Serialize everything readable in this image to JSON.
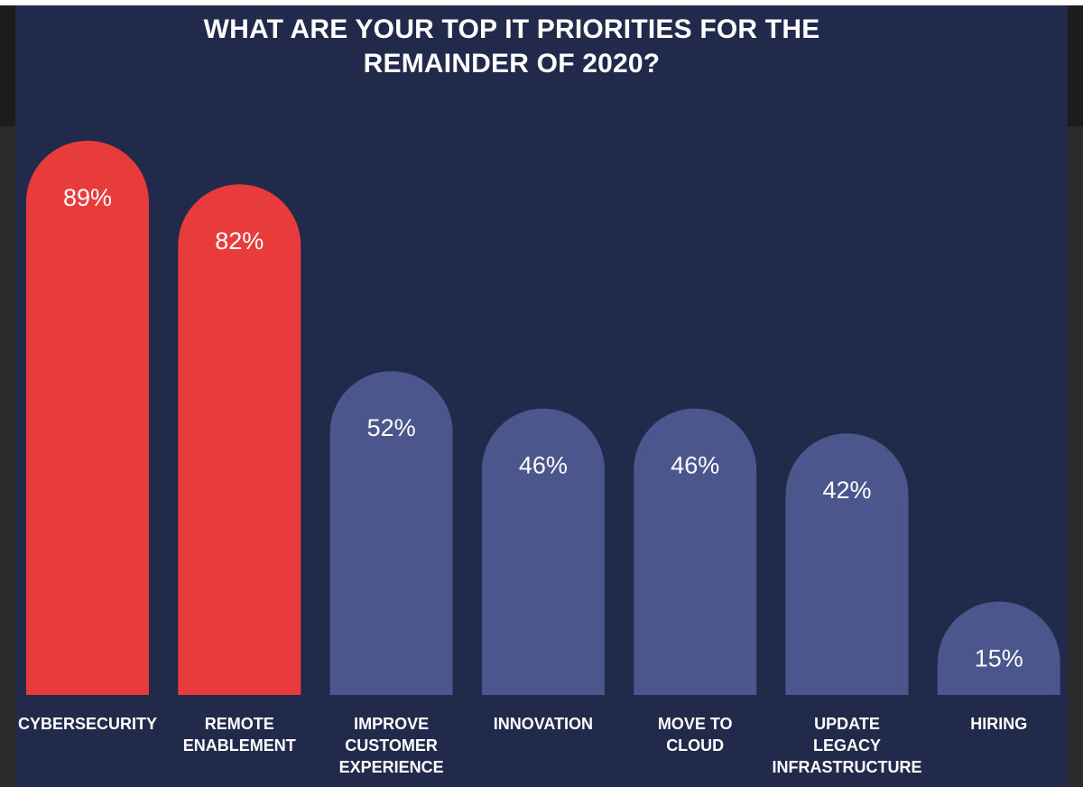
{
  "chart_data": {
    "type": "bar",
    "title_lines": [
      "WHAT ARE YOUR TOP IT PRIORITIES FOR THE",
      "REMAINDER OF 2020?"
    ],
    "categories": [
      [
        "CYBERSECURITY"
      ],
      [
        "REMOTE",
        "ENABLEMENT"
      ],
      [
        "IMPROVE",
        "CUSTOMER",
        "EXPERIENCE"
      ],
      [
        "INNOVATION"
      ],
      [
        "MOVE TO",
        "CLOUD"
      ],
      [
        "UPDATE",
        "LEGACY",
        "INFRASTRUCTURE"
      ],
      [
        "HIRING"
      ]
    ],
    "values": [
      89,
      82,
      52,
      46,
      46,
      42,
      15
    ],
    "value_labels": [
      "89%",
      "82%",
      "52%",
      "46%",
      "46%",
      "42%",
      "15%"
    ],
    "unit": "%",
    "highlight_colors": [
      "#e83c3c",
      "#e83c3c",
      "#4a568c",
      "#4a568c",
      "#4a568c",
      "#4a568c",
      "#4a568c"
    ],
    "background_color": "#222a4b",
    "grid": false,
    "legend": "none"
  }
}
